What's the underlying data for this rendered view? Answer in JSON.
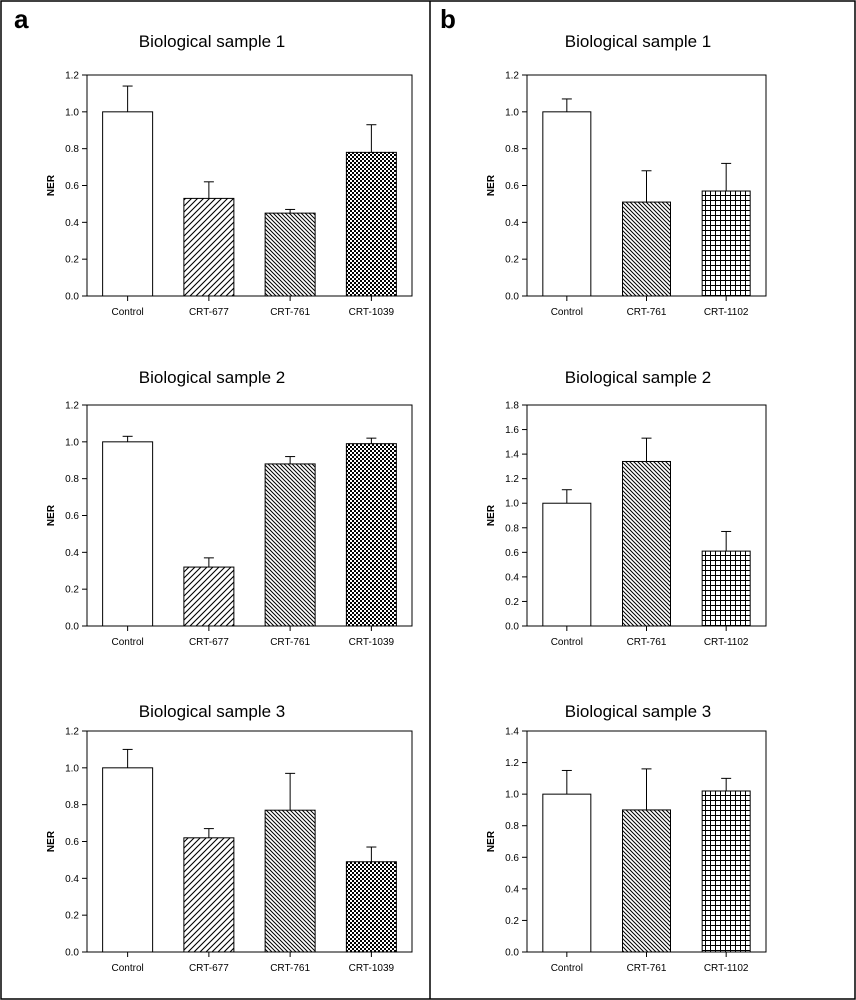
{
  "panels": [
    {
      "letter": "a"
    },
    {
      "letter": "b"
    }
  ],
  "chart_data": [
    {
      "type": "bar",
      "panel": "a",
      "title": "Biological sample 1",
      "xlabel": "",
      "ylabel": "NER",
      "ylim": [
        0,
        1.2
      ],
      "yticks": [
        "0.0",
        "0.2",
        "0.4",
        "0.6",
        "0.8",
        "1.0",
        "1.2"
      ],
      "grid": false,
      "categories": [
        "Control",
        "CRT-677",
        "CRT-761",
        "CRT-1039"
      ],
      "values": [
        1.0,
        0.53,
        0.45,
        0.78
      ],
      "errors": [
        0.14,
        0.09,
        0.02,
        0.15
      ],
      "patterns": [
        "none",
        "diag",
        "diag-fine",
        "dots"
      ]
    },
    {
      "type": "bar",
      "panel": "a",
      "title": "Biological sample 2",
      "xlabel": "",
      "ylabel": "NER",
      "ylim": [
        0,
        1.2
      ],
      "yticks": [
        "0.0",
        "0.2",
        "0.4",
        "0.6",
        "0.8",
        "1.0",
        "1.2"
      ],
      "grid": false,
      "categories": [
        "Control",
        "CRT-677",
        "CRT-761",
        "CRT-1039"
      ],
      "values": [
        1.0,
        0.32,
        0.88,
        0.99
      ],
      "errors": [
        0.03,
        0.05,
        0.04,
        0.03
      ],
      "patterns": [
        "none",
        "diag",
        "diag-fine",
        "dots"
      ]
    },
    {
      "type": "bar",
      "panel": "a",
      "title": "Biological sample 3",
      "xlabel": "",
      "ylabel": "NER",
      "ylim": [
        0,
        1.2
      ],
      "yticks": [
        "0.0",
        "0.2",
        "0.4",
        "0.6",
        "0.8",
        "1.0",
        "1.2"
      ],
      "grid": false,
      "categories": [
        "Control",
        "CRT-677",
        "CRT-761",
        "CRT-1039"
      ],
      "values": [
        1.0,
        0.62,
        0.77,
        0.49
      ],
      "errors": [
        0.1,
        0.05,
        0.2,
        0.08
      ],
      "patterns": [
        "none",
        "diag",
        "diag-fine",
        "dots"
      ]
    },
    {
      "type": "bar",
      "panel": "b",
      "title": "Biological sample 1",
      "xlabel": "",
      "ylabel": "NER",
      "ylim": [
        0,
        1.2
      ],
      "yticks": [
        "0.0",
        "0.2",
        "0.4",
        "0.6",
        "0.8",
        "1.0",
        "1.2"
      ],
      "grid": false,
      "categories": [
        "Control",
        "CRT-761",
        "CRT-1102"
      ],
      "values": [
        1.0,
        0.51,
        0.57
      ],
      "errors": [
        0.07,
        0.17,
        0.15
      ],
      "patterns": [
        "none",
        "diag-fine",
        "grid"
      ]
    },
    {
      "type": "bar",
      "panel": "b",
      "title": "Biological sample 2",
      "xlabel": "",
      "ylabel": "NER",
      "ylim": [
        0,
        1.8
      ],
      "yticks": [
        "0.0",
        "0.2",
        "0.4",
        "0.6",
        "0.8",
        "1.0",
        "1.2",
        "1.4",
        "1.6",
        "1.8"
      ],
      "grid": false,
      "categories": [
        "Control",
        "CRT-761",
        "CRT-1102"
      ],
      "values": [
        1.0,
        1.34,
        0.61
      ],
      "errors": [
        0.11,
        0.19,
        0.16
      ],
      "patterns": [
        "none",
        "diag-fine",
        "grid"
      ]
    },
    {
      "type": "bar",
      "panel": "b",
      "title": "Biological sample 3",
      "xlabel": "",
      "ylabel": "NER",
      "ylim": [
        0,
        1.4
      ],
      "yticks": [
        "0.0",
        "0.2",
        "0.4",
        "0.6",
        "0.8",
        "1.0",
        "1.2",
        "1.4"
      ],
      "grid": false,
      "categories": [
        "Control",
        "CRT-761",
        "CRT-1102"
      ],
      "values": [
        1.0,
        0.9,
        1.02
      ],
      "errors": [
        0.15,
        0.26,
        0.08
      ],
      "patterns": [
        "none",
        "diag-fine",
        "grid"
      ]
    }
  ]
}
